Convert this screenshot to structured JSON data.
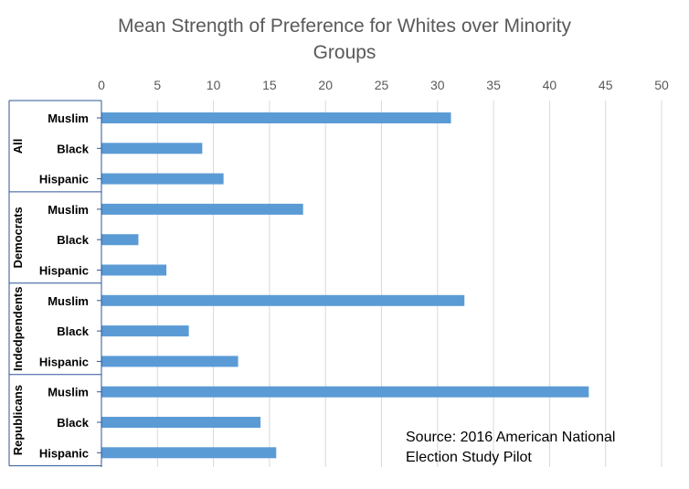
{
  "chart_data": {
    "type": "bar",
    "orientation": "horizontal",
    "title_lines": [
      "Mean Strength of Preference for Whites over Minority",
      "Groups"
    ],
    "x_ticks": [
      "0",
      "5",
      "10",
      "15",
      "20",
      "25",
      "30",
      "35",
      "40",
      "45",
      "50"
    ],
    "xlim": [
      0,
      50
    ],
    "x_axis_position": "top",
    "grid": true,
    "bar_color": "#5B9BD5",
    "groups": [
      {
        "name": "All",
        "categories": [
          "Muslim",
          "Black",
          "Hispanic"
        ],
        "values": [
          31.2,
          9.0,
          10.9
        ]
      },
      {
        "name": "Democrats",
        "categories": [
          "Muslim",
          "Black",
          "Hispanic"
        ],
        "values": [
          18.0,
          3.3,
          5.8
        ]
      },
      {
        "name": "Indedpendents",
        "categories": [
          "Muslim",
          "Black",
          "Hispanic"
        ],
        "values": [
          32.4,
          7.8,
          12.2
        ]
      },
      {
        "name": "Republicans",
        "categories": [
          "Muslim",
          "Black",
          "Hispanic"
        ],
        "values": [
          43.5,
          14.2,
          15.6
        ]
      }
    ],
    "annotation_lines": [
      "Source: 2016 American National",
      "Election Study Pilot"
    ]
  }
}
